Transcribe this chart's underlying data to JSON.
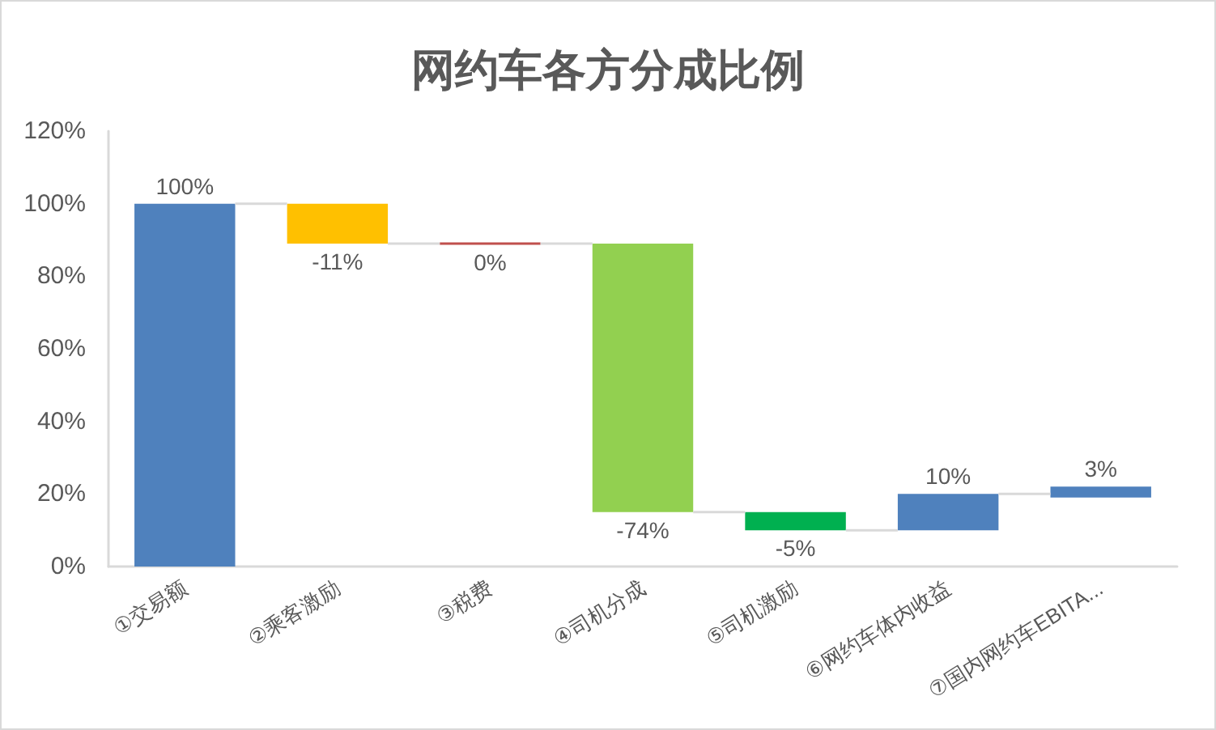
{
  "chart_data": {
    "type": "bar",
    "title": "网约车各方分成比例",
    "categories": [
      "①交易额",
      "②乘客激励",
      "③税费",
      "④司机分成",
      "⑤司机激励",
      "⑥网约车体内收益",
      "⑦国内网约车EBITA..."
    ],
    "values": [
      100,
      -11,
      0,
      -74,
      -5,
      10,
      3
    ],
    "base": [
      0,
      100,
      89,
      89,
      15,
      10,
      19
    ],
    "colors": [
      "#4f81bd",
      "#ffc000",
      "#c0504d",
      "#92d050",
      "#00b050",
      "#4f81bd",
      "#4f81bd"
    ],
    "value_labels": [
      "100%",
      "-11%",
      "0%",
      "-74%",
      "-5%",
      "10%",
      "3%"
    ],
    "ylim": [
      0,
      120
    ],
    "yticks": [
      {
        "value": 0,
        "label": "0%"
      },
      {
        "value": 20,
        "label": "20%"
      },
      {
        "value": 40,
        "label": "40%"
      },
      {
        "value": 60,
        "label": "60%"
      },
      {
        "value": 80,
        "label": "80%"
      },
      {
        "value": 100,
        "label": "100%"
      },
      {
        "value": 120,
        "label": "120%"
      }
    ]
  }
}
